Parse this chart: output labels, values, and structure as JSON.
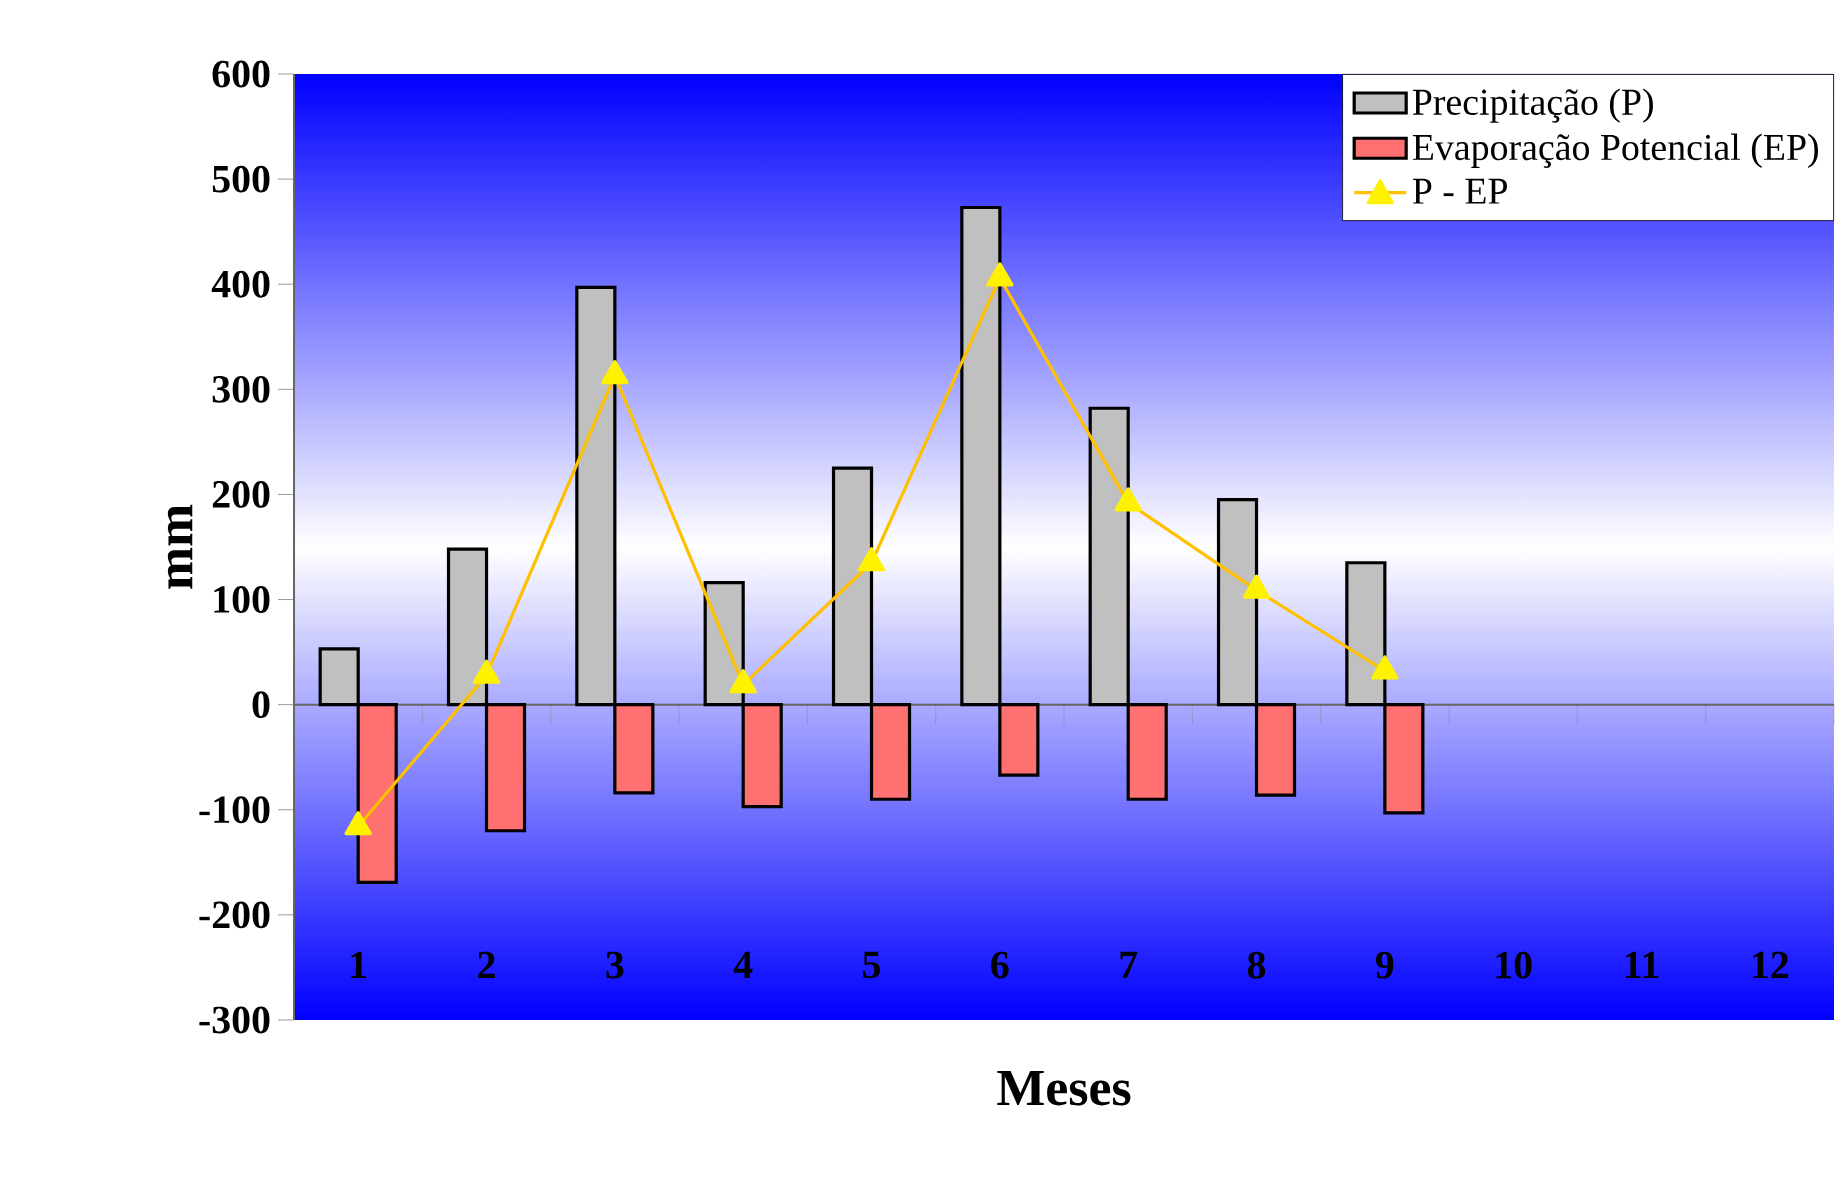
{
  "chart_data": {
    "type": "bar",
    "xlabel": "Meses",
    "ylabel": "mm",
    "categories": [
      "1",
      "2",
      "3",
      "4",
      "5",
      "6",
      "7",
      "8",
      "9",
      "10",
      "11",
      "12"
    ],
    "ylim": [
      -300,
      600
    ],
    "yticks": [
      -300,
      -200,
      -100,
      0,
      100,
      200,
      300,
      400,
      500,
      600
    ],
    "legend": "top right",
    "marker": "triangle",
    "series": [
      {
        "name": "Precipitação (P)",
        "color": "#c0c0c0",
        "values": [
          53,
          148,
          397,
          116,
          225,
          473,
          282,
          195,
          135,
          null,
          null,
          null
        ]
      },
      {
        "name": "Evaporação Potencial (EP)",
        "color": "#ff7070",
        "values": [
          -169,
          -120,
          -84,
          -97,
          -90,
          -67,
          -90,
          -86,
          -103,
          null,
          null,
          null
        ]
      },
      {
        "name": "P - EP",
        "type": "line",
        "color": "#ffc000",
        "values": [
          -116,
          28,
          313,
          19,
          135,
          406,
          192,
          109,
          32,
          null,
          null,
          null
        ]
      }
    ]
  }
}
